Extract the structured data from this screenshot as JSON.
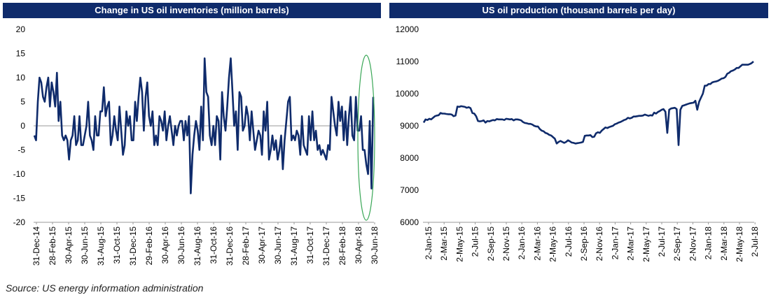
{
  "colors": {
    "title_bg": "#0f2b6b",
    "line": "#0f2b6b",
    "highlight": "#3aa757",
    "axis": "#999999"
  },
  "source": "Source: US energy information administration",
  "chart_data": [
    {
      "type": "line",
      "title": "Change in US oil inventories (million barrels)",
      "xlabel": "",
      "ylabel": "",
      "ylim": [
        -20,
        20
      ],
      "yticks": [
        "20",
        "15",
        "10",
        "5",
        "0",
        "-5",
        "-10",
        "-15",
        "-20"
      ],
      "xticks": [
        "31-Dec-14",
        "28-Feb-15",
        "30-Apr-15",
        "30-Jun-15",
        "31-Aug-15",
        "31-Oct-15",
        "31-Dec-15",
        "29-Feb-16",
        "30-Apr-16",
        "30-Jun-16",
        "31-Aug-16",
        "31-Oct-16",
        "31-Dec-16",
        "28-Feb-17",
        "30-Apr-17",
        "30-Jun-17",
        "31-Aug-17",
        "31-Oct-17",
        "31-Dec-17",
        "28-Feb-18",
        "30-Apr-18",
        "30-Jun-18"
      ],
      "annotation": "ellipse highlighting latest weeks",
      "series": [
        {
          "values": [
            -2,
            -3,
            5,
            10,
            9,
            6,
            5,
            8,
            10,
            4,
            9,
            7,
            4,
            11,
            1,
            5,
            -2,
            -3,
            -2,
            -3,
            -7,
            -3,
            -2,
            2,
            -4,
            -3,
            2,
            -4,
            -4,
            -2,
            0,
            5,
            -2,
            -3,
            -5,
            2,
            -2,
            -2,
            3,
            3,
            8,
            2,
            4,
            5,
            -4,
            -2,
            2,
            -1,
            -3,
            4,
            -1,
            -6,
            -4,
            3,
            0,
            2,
            -3,
            -3,
            5,
            1,
            6,
            10,
            7,
            -1,
            6,
            9,
            2,
            0,
            3,
            -4,
            -2,
            -4,
            2,
            1,
            -1,
            3,
            -3,
            0,
            2,
            -1,
            -4,
            0,
            -2,
            0,
            1,
            1,
            -3,
            1,
            -2,
            2,
            -14,
            -6,
            -2,
            1,
            -1,
            -5,
            4,
            -3,
            14,
            7,
            6,
            -2,
            -4,
            0,
            -4,
            2,
            1,
            -7,
            7,
            2,
            -1,
            4,
            10,
            14,
            7,
            0,
            3,
            -5,
            7,
            6,
            -1,
            0,
            4,
            2,
            -3,
            3,
            -1,
            -5,
            -3,
            -1,
            -2,
            -6,
            3,
            -1,
            5,
            -7,
            -5,
            -2,
            -5,
            -3,
            -7,
            -5,
            -2,
            -9,
            -3,
            1,
            5,
            6,
            -3,
            -2,
            -3,
            -1,
            -2,
            -6,
            2,
            -4,
            -5,
            -6,
            2,
            -3,
            3,
            -3,
            -1,
            -5,
            -4,
            -6,
            -5,
            -6,
            -7,
            -4,
            -5,
            6,
            3,
            0,
            -2,
            5,
            1,
            4,
            -3,
            3,
            -4,
            2,
            6,
            -2,
            -3,
            6,
            -1,
            -1,
            2,
            -5,
            -5,
            -8,
            -10,
            1,
            -13,
            6
          ]
        }
      ]
    },
    {
      "type": "line",
      "title": "US oil production (thousand barrels per day)",
      "xlabel": "",
      "ylabel": "",
      "ylim": [
        6000,
        12000
      ],
      "yticks": [
        "12000",
        "11000",
        "10000",
        "9000",
        "8000",
        "7000",
        "6000"
      ],
      "xticks": [
        "2-Jan-15",
        "2-Mar-15",
        "2-May-15",
        "2-Jul-15",
        "2-Sep-15",
        "2-Nov-15",
        "2-Jan-16",
        "2-Mar-16",
        "2-May-16",
        "2-Jul-16",
        "2-Sep-16",
        "2-Nov-16",
        "2-Jan-17",
        "2-Mar-17",
        "2-May-17",
        "2-Jul-17",
        "2-Sep-17",
        "2-Nov-17",
        "2-Jan-18",
        "2-Mar-18",
        "2-May-18",
        "2-Jul-18"
      ],
      "series": [
        {
          "values": [
            9100,
            9200,
            9180,
            9220,
            9200,
            9250,
            9300,
            9320,
            9330,
            9400,
            9380,
            9380,
            9370,
            9360,
            9360,
            9350,
            9300,
            9320,
            9600,
            9590,
            9610,
            9600,
            9590,
            9560,
            9580,
            9550,
            9400,
            9380,
            9300,
            9150,
            9140,
            9150,
            9170,
            9100,
            9150,
            9140,
            9160,
            9180,
            9170,
            9210,
            9200,
            9200,
            9200,
            9180,
            9220,
            9210,
            9200,
            9210,
            9170,
            9200,
            9200,
            9190,
            9170,
            9120,
            9090,
            9080,
            9060,
            9060,
            9040,
            9000,
            8980,
            8980,
            8900,
            8850,
            8830,
            8780,
            8760,
            8720,
            8700,
            8650,
            8600,
            8450,
            8500,
            8530,
            8500,
            8470,
            8500,
            8550,
            8520,
            8480,
            8470,
            8450,
            8460,
            8470,
            8480,
            8500,
            8690,
            8700,
            8700,
            8710,
            8650,
            8660,
            8770,
            8800,
            8780,
            8850,
            8900,
            8950,
            8930,
            8960,
            8980,
            9000,
            9050,
            9070,
            9100,
            9120,
            9150,
            9180,
            9200,
            9250,
            9230,
            9250,
            9290,
            9290,
            9300,
            9310,
            9310,
            9320,
            9350,
            9330,
            9310,
            9330,
            9320,
            9410,
            9380,
            9430,
            9460,
            9500,
            9520,
            9440,
            8780,
            9500,
            9540,
            9550,
            9560,
            9520,
            8400,
            9500,
            9620,
            9640,
            9660,
            9680,
            9700,
            9710,
            9720,
            9780,
            9500,
            9750,
            9880,
            10000,
            10250,
            10250,
            10300,
            10300,
            10350,
            10370,
            10380,
            10400,
            10430,
            10470,
            10480,
            10520,
            10620,
            10650,
            10700,
            10720,
            10750,
            10800,
            10800,
            10850,
            10900,
            10900,
            10900,
            10900,
            10920,
            10950,
            11000
          ]
        }
      ]
    }
  ]
}
